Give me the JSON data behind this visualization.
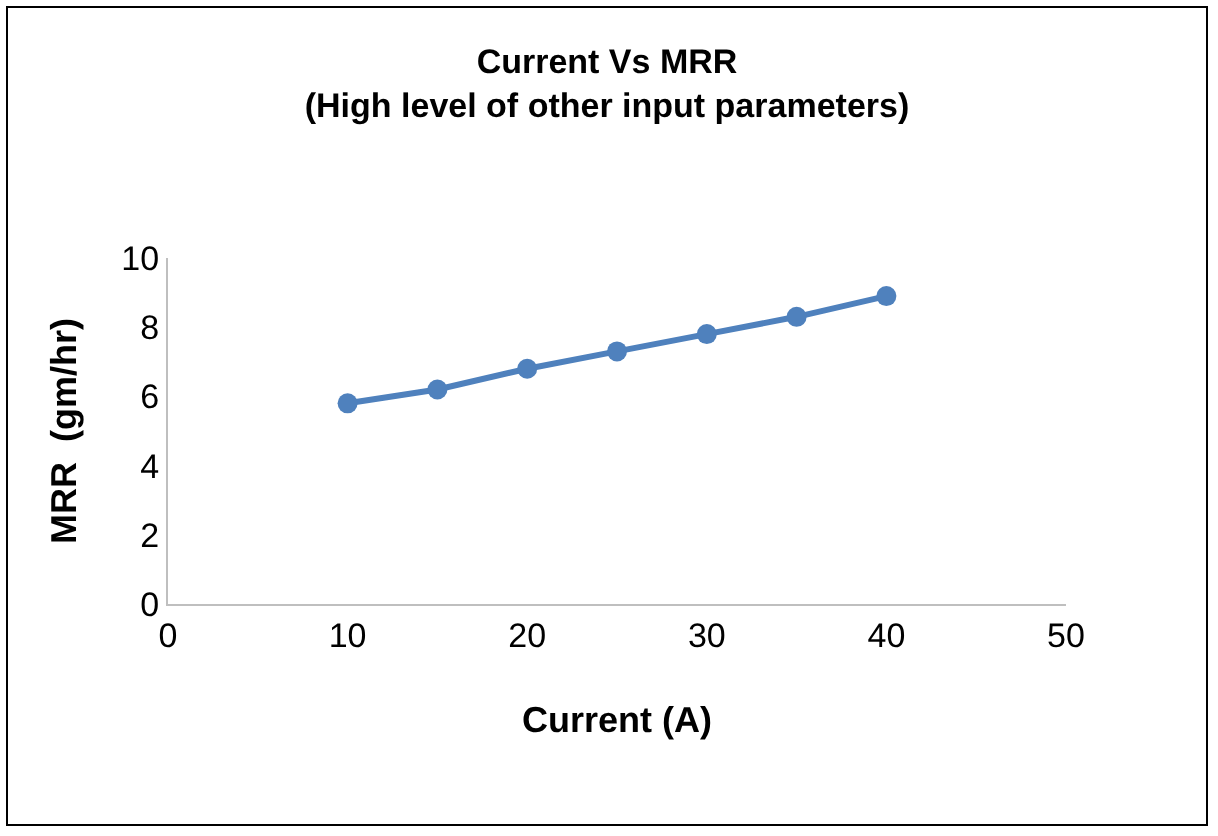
{
  "chart_data": {
    "type": "line",
    "title": "Current Vs MRR\n(High level of other input parameters)",
    "xlabel": "Current (A)",
    "ylabel": "MRR  (gm/hr)",
    "x": [
      10,
      15,
      20,
      25,
      30,
      35,
      40
    ],
    "series": [
      {
        "color": "#4f81bd",
        "values": [
          5.8,
          6.2,
          6.8,
          7.3,
          7.8,
          8.3,
          8.9
        ]
      }
    ],
    "xlim": [
      0,
      50
    ],
    "xticks": [
      0,
      10,
      20,
      30,
      40,
      50
    ],
    "ylim": [
      0,
      10
    ],
    "yticks": [
      0,
      2,
      4,
      6,
      8,
      10
    ],
    "grid": false,
    "legend": false,
    "marker": "circle",
    "line_style": "solid"
  }
}
